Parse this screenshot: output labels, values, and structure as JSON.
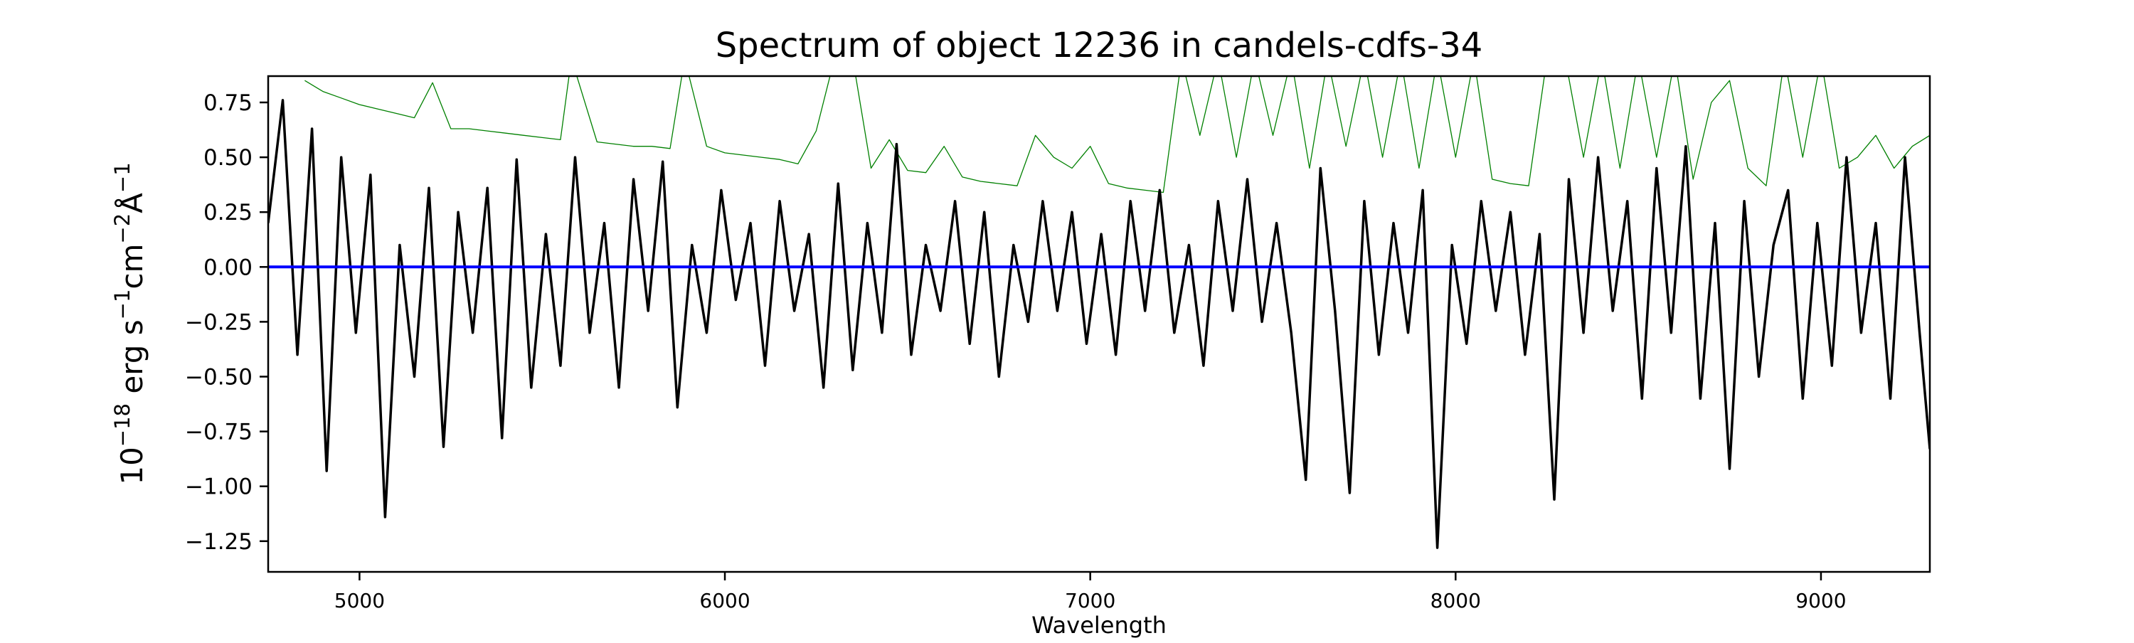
{
  "chart_data": {
    "type": "line",
    "title": "Spectrum of object 12236 in candels-cdfs-34",
    "xlabel": "Wavelength",
    "ylabel_parts": {
      "base": "10",
      "exp18": "−18",
      "erg": " erg s",
      "exp1": "−1",
      "cm": "cm",
      "exp2": "−2",
      "ang": "Å",
      "exp3": "−1"
    },
    "xlim": [
      4750,
      9298
    ],
    "ylim": [
      -1.39,
      0.87
    ],
    "xticks": [
      5000,
      6000,
      7000,
      8000,
      9000
    ],
    "xtick_labels": [
      "5000",
      "6000",
      "7000",
      "8000",
      "9000"
    ],
    "yticks": [
      0.75,
      0.5,
      0.25,
      0,
      -0.25,
      -0.5,
      -0.75,
      -1.0,
      -1.25
    ],
    "ytick_labels": [
      "0.75",
      "0.50",
      "0.25",
      "0.00",
      "−0.25",
      "−0.50",
      "−0.75",
      "−1.00",
      "−1.25"
    ],
    "grid": false,
    "series": [
      {
        "color": "#000000",
        "x": [
          4750,
          4790,
          4830,
          4870,
          4910,
          4950,
          4990,
          5030,
          5070,
          5110,
          5150,
          5190,
          5230,
          5270,
          5310,
          5350,
          5390,
          5430,
          5470,
          5510,
          5550,
          5590,
          5630,
          5670,
          5710,
          5750,
          5790,
          5830,
          5870,
          5910,
          5950,
          5990,
          6030,
          6070,
          6110,
          6150,
          6190,
          6230,
          6270,
          6310,
          6350,
          6390,
          6430,
          6470,
          6510,
          6550,
          6590,
          6630,
          6670,
          6710,
          6750,
          6790,
          6830,
          6870,
          6910,
          6950,
          6990,
          7030,
          7070,
          7110,
          7150,
          7190,
          7230,
          7270,
          7310,
          7350,
          7390,
          7430,
          7470,
          7510,
          7550,
          7590,
          7630,
          7670,
          7710,
          7750,
          7790,
          7830,
          7870,
          7910,
          7950,
          7990,
          8030,
          8070,
          8110,
          8150,
          8190,
          8230,
          8270,
          8310,
          8350,
          8390,
          8430,
          8470,
          8510,
          8550,
          8590,
          8630,
          8670,
          8710,
          8750,
          8790,
          8830,
          8870,
          8910,
          8950,
          8990,
          9030,
          9070,
          9110,
          9150,
          9190,
          9230,
          9270,
          9298
        ],
        "y": [
          0.2,
          0.76,
          -0.4,
          0.63,
          -0.93,
          0.5,
          -0.3,
          0.42,
          -1.14,
          0.1,
          -0.5,
          0.36,
          -0.82,
          0.25,
          -0.3,
          0.36,
          -0.78,
          0.49,
          -0.55,
          0.15,
          -0.45,
          0.5,
          -0.3,
          0.2,
          -0.55,
          0.4,
          -0.2,
          0.48,
          -0.64,
          0.1,
          -0.3,
          0.35,
          -0.15,
          0.2,
          -0.45,
          0.3,
          -0.2,
          0.15,
          -0.55,
          0.38,
          -0.47,
          0.2,
          -0.3,
          0.56,
          -0.4,
          0.1,
          -0.2,
          0.3,
          -0.35,
          0.25,
          -0.5,
          0.1,
          -0.25,
          0.3,
          -0.2,
          0.25,
          -0.35,
          0.15,
          -0.4,
          0.3,
          -0.2,
          0.35,
          -0.3,
          0.1,
          -0.45,
          0.3,
          -0.2,
          0.4,
          -0.25,
          0.2,
          -0.3,
          -0.97,
          0.45,
          -0.2,
          -1.03,
          0.3,
          -0.4,
          0.2,
          -0.3,
          0.35,
          -1.28,
          0.1,
          -0.35,
          0.3,
          -0.2,
          0.25,
          -0.4,
          0.15,
          -1.06,
          0.4,
          -0.3,
          0.5,
          -0.2,
          0.3,
          -0.6,
          0.45,
          -0.3,
          0.55,
          -0.6,
          0.2,
          -0.92,
          0.3,
          -0.5,
          0.1,
          0.35,
          -0.6,
          0.2,
          -0.45,
          0.5,
          -0.3,
          0.2,
          -0.6,
          0.5,
          -0.3,
          -0.83
        ]
      },
      {
        "color": "#008000",
        "x": [
          4850,
          4900,
          4950,
          5000,
          5050,
          5100,
          5150,
          5200,
          5250,
          5300,
          5350,
          5400,
          5450,
          5500,
          5550,
          5580,
          5650,
          5700,
          5750,
          5800,
          5850,
          5890,
          5950,
          6000,
          6050,
          6100,
          6150,
          6200,
          6250,
          6300,
          6350,
          6400,
          6450,
          6500,
          6550,
          6600,
          6650,
          6700,
          6750,
          6800,
          6850,
          6900,
          6950,
          7000,
          7050,
          7100,
          7150,
          7200,
          7250,
          7300,
          7350,
          7400,
          7450,
          7500,
          7550,
          7600,
          7650,
          7700,
          7750,
          7800,
          7850,
          7900,
          7950,
          8000,
          8050,
          8100,
          8150,
          8200,
          8250,
          8300,
          8350,
          8400,
          8450,
          8500,
          8550,
          8600,
          8650,
          8700,
          8750,
          8800,
          8850,
          8900,
          8950,
          9000,
          9050,
          9100,
          9150,
          9200,
          9250,
          9298
        ],
        "y": [
          0.85,
          0.8,
          0.77,
          0.74,
          0.72,
          0.7,
          0.68,
          0.84,
          0.63,
          0.63,
          0.62,
          0.61,
          0.6,
          0.59,
          0.58,
          0.95,
          0.57,
          0.56,
          0.55,
          0.55,
          0.54,
          0.95,
          0.55,
          0.52,
          0.51,
          0.5,
          0.49,
          0.47,
          0.62,
          0.95,
          0.95,
          0.45,
          0.58,
          0.44,
          0.43,
          0.55,
          0.41,
          0.39,
          0.38,
          0.37,
          0.6,
          0.5,
          0.45,
          0.55,
          0.38,
          0.36,
          0.35,
          0.34,
          0.95,
          0.6,
          0.95,
          0.5,
          0.95,
          0.6,
          0.95,
          0.45,
          0.95,
          0.55,
          0.95,
          0.5,
          0.95,
          0.45,
          0.95,
          0.5,
          0.95,
          0.4,
          0.38,
          0.37,
          0.95,
          0.95,
          0.5,
          0.95,
          0.45,
          0.95,
          0.5,
          0.95,
          0.4,
          0.75,
          0.85,
          0.45,
          0.37,
          0.95,
          0.5,
          0.95,
          0.45,
          0.5,
          0.6,
          0.45,
          0.55,
          0.6
        ]
      },
      {
        "color": "#0000ff",
        "x": [
          4750,
          9298
        ],
        "y": [
          0,
          0
        ]
      }
    ]
  }
}
